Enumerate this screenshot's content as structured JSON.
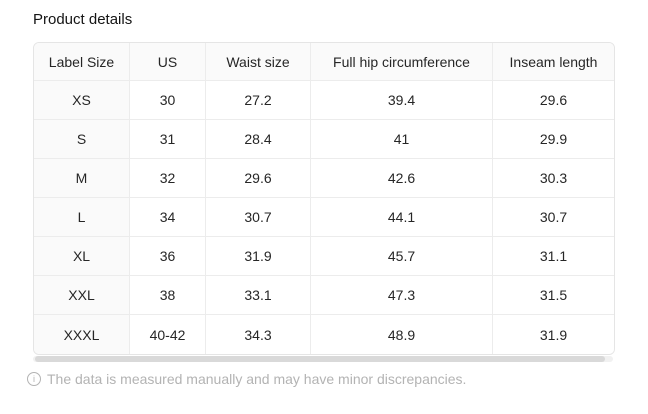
{
  "page": {
    "title": "Product details"
  },
  "table": {
    "columns": [
      "Label Size",
      "US",
      "Waist size",
      "Full hip circumference",
      "Inseam length"
    ],
    "rows": [
      [
        "XS",
        "30",
        "27.2",
        "39.4",
        "29.6"
      ],
      [
        "S",
        "31",
        "28.4",
        "41",
        "29.9"
      ],
      [
        "M",
        "32",
        "29.6",
        "42.6",
        "30.3"
      ],
      [
        "L",
        "34",
        "30.7",
        "44.1",
        "30.7"
      ],
      [
        "XL",
        "36",
        "31.9",
        "45.7",
        "31.1"
      ],
      [
        "XXL",
        "38",
        "33.1",
        "47.3",
        "31.5"
      ],
      [
        "XXXL",
        "40-42",
        "34.3",
        "48.9",
        "31.9"
      ]
    ]
  },
  "footer": {
    "icon": "info-circle-icon",
    "icon_glyph": "i",
    "text": "The data is measured manually and may have minor discrepancies."
  },
  "colors": {
    "header_bg": "#fafafa",
    "table_border": "#e5e5e5",
    "cell_border": "#ececec",
    "text": "#262626",
    "muted_text": "#b3b3b3",
    "scrollbar_thumb": "#d9d9d9",
    "scrollbar_track": "#f1f1f1"
  }
}
